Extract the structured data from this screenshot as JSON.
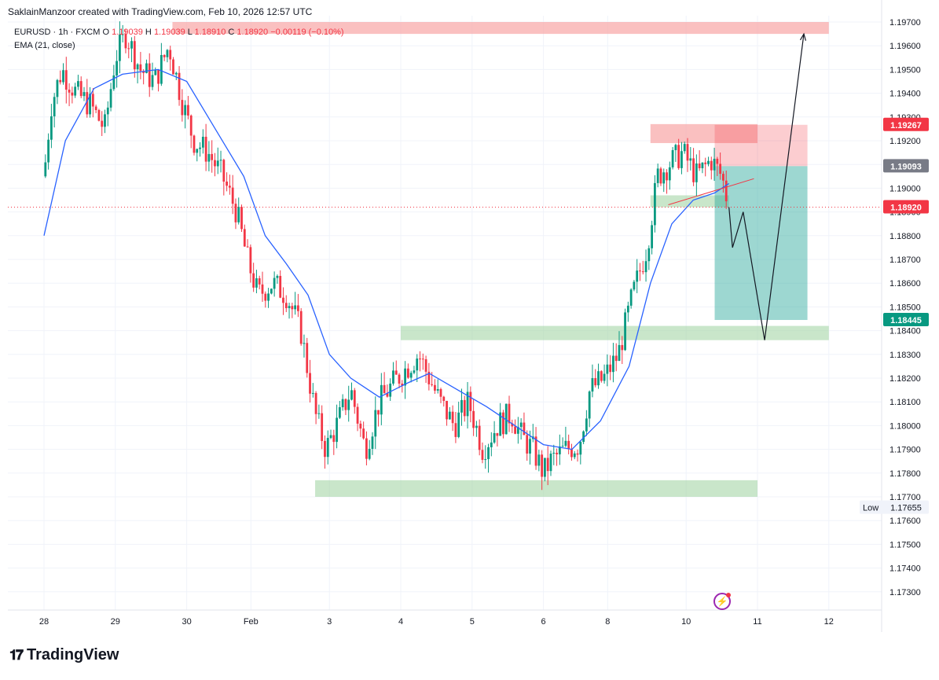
{
  "header": {
    "author_line": "SaklainManzoor created with TradingView.com, Feb 10, 2026 12:57 UTC"
  },
  "legend": {
    "symbol": "EURUSD · 1h · FXCM",
    "open_label": "O",
    "open_value": "1.19039",
    "high_label": "H",
    "high_value": "1.19039",
    "low_label": "L",
    "low_value": "1.18910",
    "close_label": "C",
    "close_value": "1.18920",
    "change": "−0.00119 (−0.10%)",
    "indicator": "EMA (21, close)"
  },
  "price_badges": {
    "stop": "1.19267",
    "entry": "1.19093",
    "current": "1.18920",
    "target": "1.18445",
    "low_label": "Low",
    "low_value": "1.17655"
  },
  "footer": {
    "brand": "TradingView"
  },
  "colors": {
    "up": "#089981",
    "down": "#f23645",
    "ema": "#2962ff",
    "zone_red": "#f8a5a5",
    "zone_green": "#a5d6a7",
    "target_zone": "#26a69a"
  },
  "chart_data": {
    "type": "candlestick",
    "symbol": "EURUSD",
    "timeframe": "1h",
    "y_ticks": [
      1.197,
      1.196,
      1.195,
      1.194,
      1.193,
      1.192,
      1.191,
      1.19,
      1.189,
      1.188,
      1.187,
      1.186,
      1.185,
      1.184,
      1.183,
      1.182,
      1.181,
      1.18,
      1.179,
      1.178,
      1.177,
      1.176,
      1.175,
      1.174,
      1.173
    ],
    "y_tick_labels": [
      "1.19700",
      "1.19600",
      "1.19500",
      "1.19400",
      "1.19300",
      "1.19200",
      "1.19100",
      "1.19000",
      "1.18900",
      "1.18800",
      "1.18700",
      "1.18600",
      "1.18500",
      "1.18400",
      "1.18300",
      "1.18200",
      "1.18100",
      "1.18000",
      "1.17900",
      "1.17800",
      "1.17700",
      "1.17600",
      "1.17500",
      "1.17400",
      "1.17300"
    ],
    "ylim": [
      1.1723,
      1.1971
    ],
    "x_tick_labels": [
      "28",
      "29",
      "30",
      "Feb",
      "3",
      "4",
      "5",
      "6",
      "8",
      "10",
      "11",
      "12"
    ],
    "x_tick_days": [
      0,
      1,
      2,
      2.9,
      4,
      5,
      6,
      7,
      7.9,
      9,
      10,
      11
    ],
    "close_path": [
      [
        0.0,
        1.1905
      ],
      [
        0.1,
        1.1935
      ],
      [
        0.25,
        1.195
      ],
      [
        0.45,
        1.194
      ],
      [
        0.65,
        1.1935
      ],
      [
        0.85,
        1.1925
      ],
      [
        1.0,
        1.1955
      ],
      [
        1.15,
        1.1965
      ],
      [
        1.35,
        1.195
      ],
      [
        1.55,
        1.1945
      ],
      [
        1.75,
        1.196
      ],
      [
        1.95,
        1.1935
      ],
      [
        2.1,
        1.192
      ],
      [
        2.3,
        1.1915
      ],
      [
        2.5,
        1.1905
      ],
      [
        2.7,
        1.189
      ],
      [
        2.85,
        1.187
      ],
      [
        3.0,
        1.1855
      ],
      [
        3.2,
        1.186
      ],
      [
        3.4,
        1.1855
      ],
      [
        3.6,
        1.184
      ],
      [
        3.8,
        1.1805
      ],
      [
        3.95,
        1.179
      ],
      [
        4.1,
        1.18
      ],
      [
        4.3,
        1.1815
      ],
      [
        4.5,
        1.179
      ],
      [
        4.7,
        1.181
      ],
      [
        4.9,
        1.1818
      ],
      [
        5.1,
        1.1825
      ],
      [
        5.25,
        1.183
      ],
      [
        5.4,
        1.182
      ],
      [
        5.55,
        1.181
      ],
      [
        5.75,
        1.18
      ],
      [
        5.95,
        1.181
      ],
      [
        6.15,
        1.179
      ],
      [
        6.35,
        1.18
      ],
      [
        6.55,
        1.1805
      ],
      [
        6.7,
        1.1795
      ],
      [
        6.85,
        1.179
      ],
      [
        7.0,
        1.178
      ],
      [
        7.1,
        1.1785
      ],
      [
        7.3,
        1.179
      ],
      [
        7.5,
        1.1792
      ],
      [
        7.65,
        1.1815
      ],
      [
        7.85,
        1.182
      ],
      [
        8.05,
        1.183
      ],
      [
        8.25,
        1.1855
      ],
      [
        8.45,
        1.1875
      ],
      [
        8.6,
        1.1905
      ],
      [
        8.75,
        1.191
      ],
      [
        8.95,
        1.1915
      ],
      [
        9.15,
        1.1905
      ],
      [
        9.35,
        1.1912
      ],
      [
        9.5,
        1.1905
      ],
      [
        9.6,
        1.1892
      ]
    ],
    "ema_path": [
      [
        0.0,
        1.188
      ],
      [
        0.3,
        1.192
      ],
      [
        0.7,
        1.1942
      ],
      [
        1.1,
        1.1948
      ],
      [
        1.6,
        1.195
      ],
      [
        2.0,
        1.1945
      ],
      [
        2.4,
        1.1925
      ],
      [
        2.8,
        1.1905
      ],
      [
        3.1,
        1.188
      ],
      [
        3.4,
        1.1868
      ],
      [
        3.7,
        1.1855
      ],
      [
        4.0,
        1.183
      ],
      [
        4.3,
        1.182
      ],
      [
        4.7,
        1.1812
      ],
      [
        5.1,
        1.1818
      ],
      [
        5.4,
        1.1822
      ],
      [
        5.8,
        1.1815
      ],
      [
        6.2,
        1.1808
      ],
      [
        6.6,
        1.18
      ],
      [
        7.0,
        1.1792
      ],
      [
        7.4,
        1.179
      ],
      [
        7.8,
        1.1802
      ],
      [
        8.2,
        1.1825
      ],
      [
        8.5,
        1.186
      ],
      [
        8.8,
        1.1885
      ],
      [
        9.1,
        1.1895
      ],
      [
        9.4,
        1.1898
      ],
      [
        9.6,
        1.1902
      ]
    ],
    "ema_name": "EMA (21, close)",
    "zones": [
      {
        "kind": "resistance",
        "x": [
          1.8,
          11.0
        ],
        "y": [
          1.1965,
          1.197
        ]
      },
      {
        "kind": "resistance",
        "x": [
          8.5,
          10.0
        ],
        "y": [
          1.1919,
          1.1927
        ]
      },
      {
        "kind": "support",
        "x": [
          8.5,
          9.6
        ],
        "y": [
          1.1892,
          1.1897
        ]
      },
      {
        "kind": "support",
        "x": [
          5.0,
          11.0
        ],
        "y": [
          1.1836,
          1.1842
        ]
      },
      {
        "kind": "support",
        "x": [
          3.8,
          10.0
        ],
        "y": [
          1.177,
          1.1777
        ]
      }
    ],
    "short_position": {
      "x": [
        9.4,
        10.7
      ],
      "entry": 1.19093,
      "stop": 1.19267,
      "target": 1.18445
    },
    "projection_path": [
      [
        9.6,
        1.1892
      ],
      [
        9.65,
        1.1875
      ],
      [
        9.8,
        1.189
      ],
      [
        10.1,
        1.1836
      ],
      [
        10.65,
        1.1965
      ]
    ],
    "trend_line": [
      [
        8.75,
        1.1893
      ],
      [
        9.95,
        1.1904
      ]
    ],
    "current_price": 1.1892,
    "period_low": 1.17655
  }
}
